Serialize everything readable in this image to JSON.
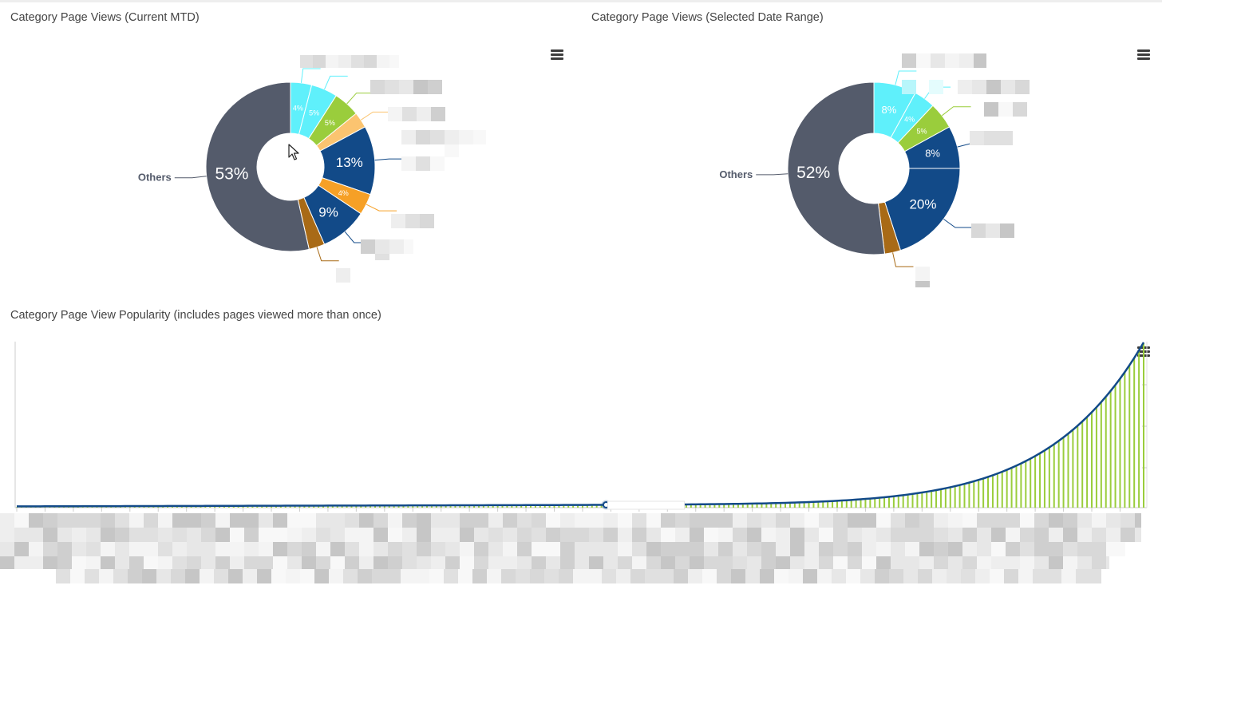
{
  "charts": {
    "mtd": {
      "title": "Category Page Views (Current MTD)"
    },
    "range": {
      "title": "Category Page Views (Selected Date Range)"
    },
    "popularity": {
      "title": "Category Page View Popularity (includes pages viewed more than once)"
    }
  },
  "chart_data": [
    {
      "type": "pie",
      "title": "Category Page Views (Current MTD)",
      "donut": true,
      "slices": [
        {
          "label": "",
          "value": 4,
          "display": "4%",
          "color": "#5ff0fb"
        },
        {
          "label": "",
          "value": 5,
          "display": "5%",
          "color": "#5ff0fb"
        },
        {
          "label": "",
          "value": 5,
          "display": "5%",
          "color": "#9acd3c"
        },
        {
          "label": "",
          "value": 3,
          "display": "",
          "color": "#fbc470"
        },
        {
          "label": "",
          "value": 13,
          "display": "13%",
          "color": "#124a88"
        },
        {
          "label": "",
          "value": 4,
          "display": "4%",
          "color": "#f6a026"
        },
        {
          "label": "",
          "value": 9,
          "display": "9%",
          "color": "#124a88"
        },
        {
          "label": "",
          "value": 3,
          "display": "",
          "color": "#a86a16"
        },
        {
          "label": "Others",
          "value": 53,
          "display": "53%",
          "color": "#545b6b"
        }
      ]
    },
    {
      "type": "pie",
      "title": "Category Page Views (Selected Date Range)",
      "donut": true,
      "slices": [
        {
          "label": "",
          "value": 8,
          "display": "8%",
          "color": "#5ff0fb"
        },
        {
          "label": "",
          "value": 4,
          "display": "4%",
          "color": "#5ff0fb"
        },
        {
          "label": "",
          "value": 5,
          "display": "5%",
          "color": "#9acd3c"
        },
        {
          "label": "",
          "value": 8,
          "display": "8%",
          "color": "#124a88"
        },
        {
          "label": "",
          "value": 20,
          "display": "20%",
          "color": "#124a88"
        },
        {
          "label": "",
          "value": 3,
          "display": "",
          "color": "#a86a16"
        },
        {
          "label": "Others",
          "value": 52,
          "display": "52%",
          "color": "#545b6b"
        }
      ]
    },
    {
      "type": "bar",
      "title": "Category Page View Popularity (includes pages viewed more than once)",
      "series": [
        {
          "name": "",
          "kind": "column",
          "color": "#9acd3c"
        },
        {
          "name": "",
          "kind": "line",
          "color": "#124a88"
        }
      ],
      "bar_count": 240,
      "grid": false,
      "curve": {
        "base": 0.3,
        "growth": 1.7,
        "exponent": 9,
        "start": 1,
        "end": 100,
        "scale": 100
      }
    }
  ]
}
